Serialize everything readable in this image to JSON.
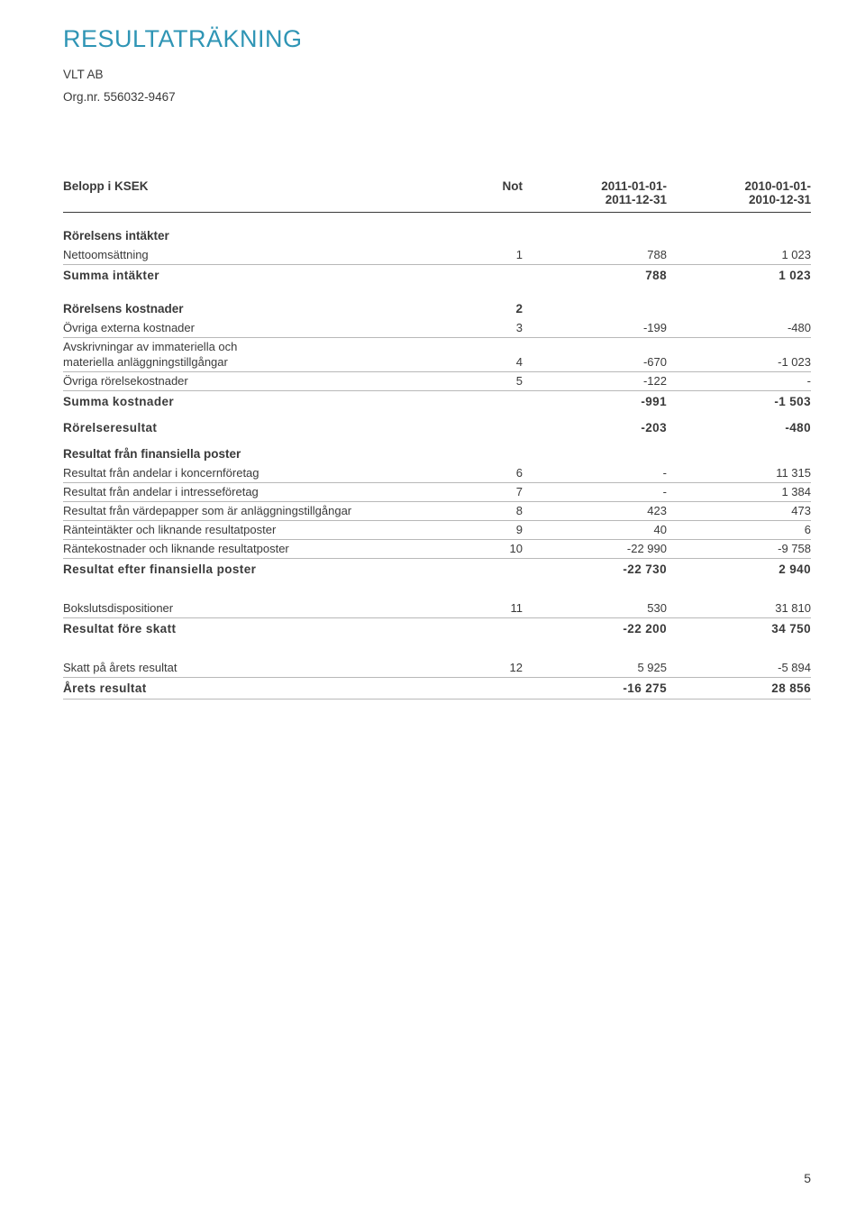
{
  "title": "RESULTATRÄKNING",
  "company": "VLT AB",
  "orgnr": "Org.nr. 556032-9467",
  "page_number": "5",
  "header": {
    "col_label": "Belopp i KSEK",
    "col_not": "Not",
    "col_p1_top": "2011-01-01-",
    "col_p1_bot": "2011-12-31",
    "col_p2_top": "2010-01-01-",
    "col_p2_bot": "2010-12-31"
  },
  "s1": {
    "heading": "Rörelsens intäkter",
    "r1": {
      "label": "Nettoomsättning",
      "not": "1",
      "v1": "788",
      "v2": "1 023"
    },
    "sum": {
      "label": "Summa intäkter",
      "v1": "788",
      "v2": "1 023"
    }
  },
  "s2": {
    "heading": "Rörelsens kostnader",
    "heading_not": "2",
    "r1": {
      "label": "Övriga externa kostnader",
      "not": "3",
      "v1": "-199",
      "v2": "-480"
    },
    "r2a": {
      "label": "Avskrivningar av immateriella och"
    },
    "r2b": {
      "label": "materiella anläggningstillgångar",
      "not": "4",
      "v1": "-670",
      "v2": "-1 023"
    },
    "r3": {
      "label": "Övriga rörelsekostnader",
      "not": "5",
      "v1": "-122",
      "v2": "-"
    },
    "sum": {
      "label": "Summa kostnader",
      "v1": "-991",
      "v2": "-1 503"
    }
  },
  "mid1": {
    "label": "Rörelseresultat",
    "v1": "-203",
    "v2": "-480"
  },
  "s3": {
    "heading": "Resultat från finansiella poster",
    "r1": {
      "label": "Resultat från andelar i koncernföretag",
      "not": "6",
      "v1": "-",
      "v2": "11 315"
    },
    "r2": {
      "label": "Resultat från andelar i intresseföretag",
      "not": "7",
      "v1": "-",
      "v2": "1 384"
    },
    "r3": {
      "label": "Resultat från värdepapper som är anläggningstillgångar",
      "not": "8",
      "v1": "423",
      "v2": "473"
    },
    "r4": {
      "label": "Ränteintäkter och liknande resultatposter",
      "not": "9",
      "v1": "40",
      "v2": "6"
    },
    "r5": {
      "label": "Räntekostnader och liknande resultatposter",
      "not": "10",
      "v1": "-22 990",
      "v2": "-9 758"
    },
    "sum": {
      "label": "Resultat efter finansiella poster",
      "v1": "-22 730",
      "v2": "2 940"
    }
  },
  "s4": {
    "r1": {
      "label": "Bokslutsdispositioner",
      "not": "11",
      "v1": "530",
      "v2": "31 810"
    },
    "sum": {
      "label": "Resultat före skatt",
      "v1": "-22 200",
      "v2": "34 750"
    }
  },
  "s5": {
    "r1": {
      "label": "Skatt på årets resultat",
      "not": "12",
      "v1": "5 925",
      "v2": "-5 894"
    },
    "sum": {
      "label": "Årets resultat",
      "v1": "-16 275",
      "v2": "28 856"
    }
  }
}
